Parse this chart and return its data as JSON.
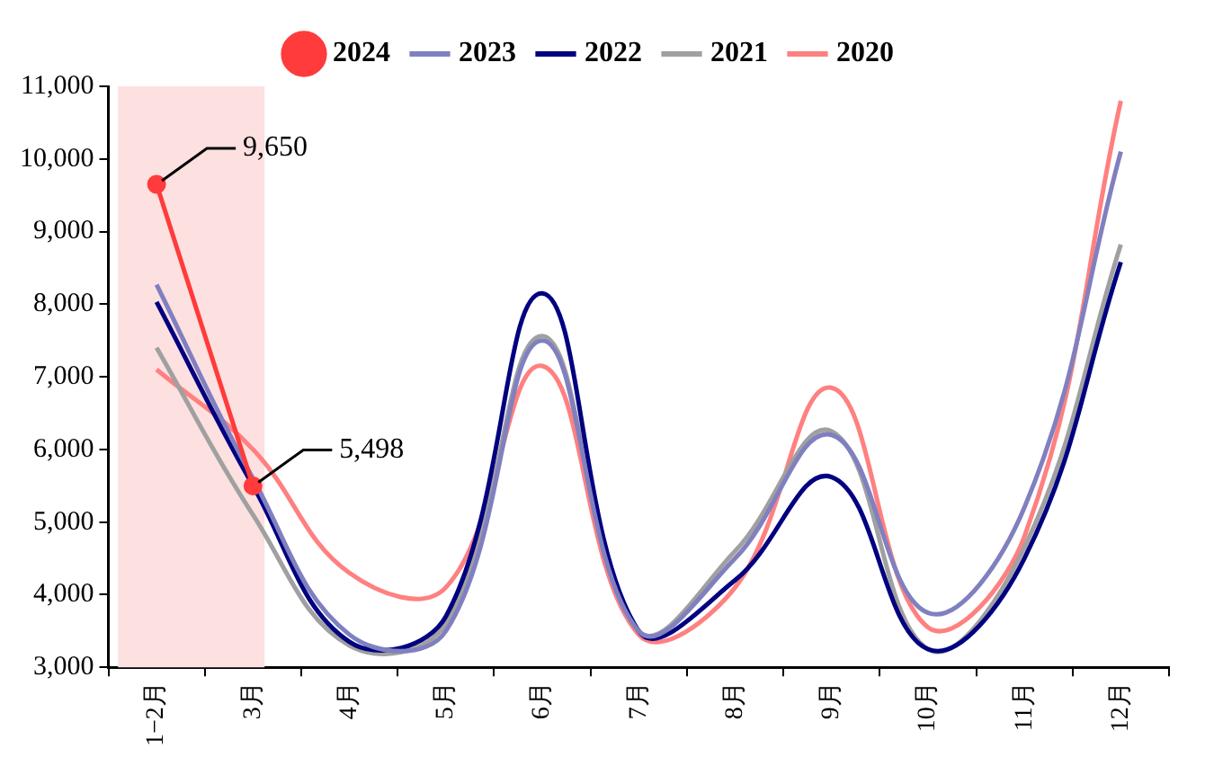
{
  "chart_data": {
    "type": "line",
    "categories": [
      "1−2月",
      "3月",
      "4月",
      "5月",
      "6月",
      "7月",
      "8月",
      "9月",
      "10月",
      "11月",
      "12月"
    ],
    "series": [
      {
        "name": "2024",
        "color": "#ff3b3b",
        "marker": "circle",
        "values": [
          9650,
          5498,
          null,
          null,
          null,
          null,
          null,
          null,
          null,
          null,
          null
        ]
      },
      {
        "name": "2023",
        "color": "#8080c0",
        "values": [
          8270,
          5600,
          3450,
          3500,
          7500,
          3500,
          4500,
          6200,
          3750,
          5200,
          10100
        ]
      },
      {
        "name": "2022",
        "color": "#000080",
        "values": [
          8030,
          5500,
          3350,
          3700,
          8150,
          3500,
          4200,
          5620,
          3250,
          4500,
          8580
        ]
      },
      {
        "name": "2021",
        "color": "#a0a0a0",
        "values": [
          7400,
          5100,
          3300,
          3600,
          7560,
          3500,
          4600,
          6250,
          3250,
          4650,
          8820
        ]
      },
      {
        "name": "2020",
        "color": "#ff8080",
        "values": [
          7100,
          6000,
          4300,
          4100,
          7150,
          3450,
          4100,
          6850,
          3550,
          4800,
          10800
        ]
      }
    ],
    "ylim": [
      3000,
      11000
    ],
    "yticks": [
      {
        "value": 3000,
        "label": "3,000"
      },
      {
        "value": 4000,
        "label": "4,000"
      },
      {
        "value": 5000,
        "label": "5,000"
      },
      {
        "value": 6000,
        "label": "6,000"
      },
      {
        "value": 7000,
        "label": "7,000"
      },
      {
        "value": 8000,
        "label": "8,000"
      },
      {
        "value": 9000,
        "label": "9,000"
      },
      {
        "value": 10000,
        "label": "10,000"
      },
      {
        "value": 11000,
        "label": "11,000"
      }
    ],
    "bands": [
      {
        "axis": "x",
        "from": "1−2月",
        "to": "3月",
        "color": "#fde0e0"
      }
    ],
    "annotations": [
      {
        "text": "9,650",
        "x": "1−2月",
        "y": 9650
      },
      {
        "text": "5,498",
        "x": "3月",
        "y": 5498
      }
    ],
    "grid": false,
    "legend": "top",
    "line_style": "solid"
  }
}
